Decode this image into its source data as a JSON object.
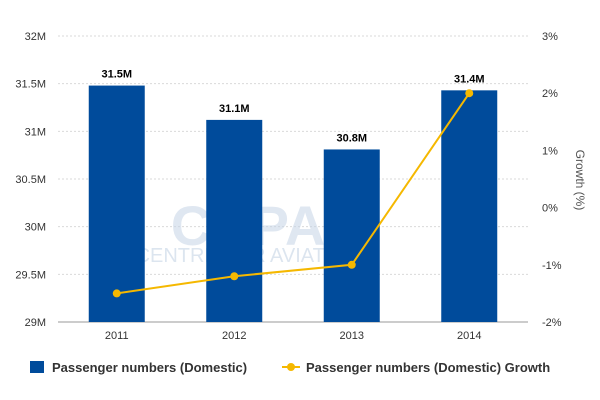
{
  "chart_data": {
    "type": "bar",
    "categories": [
      "2011",
      "2012",
      "2013",
      "2014"
    ],
    "series": [
      {
        "name": "Passenger numbers (Domestic)",
        "type": "bar",
        "axis": "left",
        "values": [
          31.48,
          31.12,
          30.81,
          31.43
        ],
        "data_labels": [
          "31.5M",
          "31.1M",
          "30.8M",
          "31.4M"
        ],
        "color": "#004b9b"
      },
      {
        "name": "Passenger numbers (Domestic) Growth",
        "type": "line",
        "axis": "right",
        "values": [
          -1.5,
          -1.2,
          -1.0,
          2.0
        ],
        "color": "#f5b800"
      }
    ],
    "y_left": {
      "ylim": [
        29,
        32
      ],
      "ticks": [
        29,
        29.5,
        30,
        30.5,
        31,
        31.5,
        32
      ],
      "tick_labels": [
        "29M",
        "29.5M",
        "30M",
        "30.5M",
        "31M",
        "31.5M",
        "32M"
      ]
    },
    "y_right": {
      "label": "Growth (%)",
      "ylim": [
        -2,
        3
      ],
      "ticks": [
        -2,
        -1,
        0,
        1,
        2,
        3
      ],
      "tick_labels": [
        "-2%",
        "-1%",
        "0%",
        "1%",
        "2%",
        "3%"
      ]
    },
    "grid": true,
    "legend_position": "bottom"
  },
  "watermark": {
    "logo": "CAPA",
    "text": "CENTRE FOR AVIATION"
  }
}
